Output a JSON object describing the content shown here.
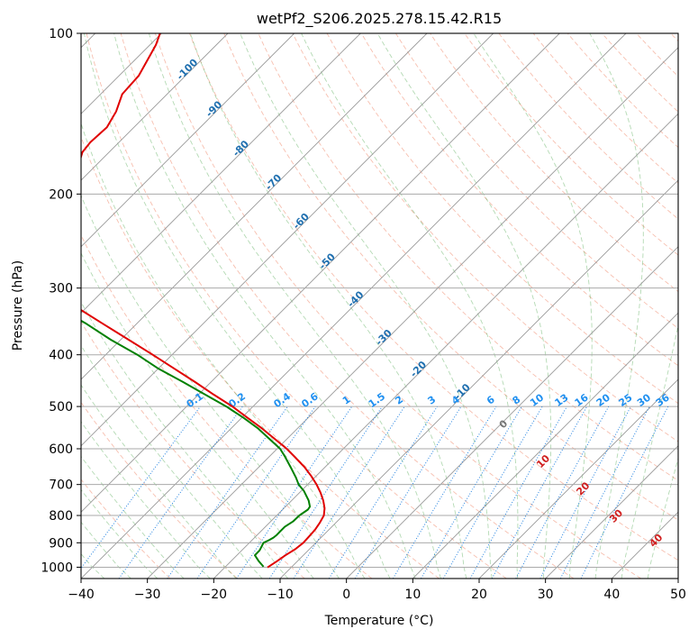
{
  "chart_data": {
    "type": "line",
    "subtype": "skew-T log-P diagram",
    "title": "wetPf2_S206.2025.278.15.42.R15",
    "xlabel": "Temperature (°C)",
    "ylabel": "Pressure (hPa)",
    "xlim": [
      -40,
      50
    ],
    "ylim": [
      1050,
      100
    ],
    "x_ticks": [
      -40,
      -30,
      -20,
      -10,
      0,
      10,
      20,
      30,
      40,
      50
    ],
    "x_tick_labels": [
      "−40",
      "−30",
      "−20",
      "−10",
      "0",
      "10",
      "20",
      "30",
      "40",
      "50"
    ],
    "y_ticks": [
      100,
      200,
      300,
      400,
      500,
      600,
      700,
      800,
      900,
      1000
    ],
    "y_tick_labels": [
      "100",
      "200",
      "300",
      "400",
      "500",
      "600",
      "700",
      "800",
      "900",
      "1000"
    ],
    "isotherm_labels": [
      {
        "text": "-100",
        "p": 118
      },
      {
        "text": "-90",
        "p": 140
      },
      {
        "text": "-80",
        "p": 166
      },
      {
        "text": "-70",
        "p": 192
      },
      {
        "text": "-60",
        "p": 227
      },
      {
        "text": "-50",
        "p": 270
      },
      {
        "text": "-40",
        "p": 318
      },
      {
        "text": "-30",
        "p": 375
      },
      {
        "text": "-20",
        "p": 430
      },
      {
        "text": "-10",
        "p": 474
      }
    ],
    "mixing_ratio_labels": [
      "0.1",
      "0.2",
      "0.4",
      "0.6",
      "1",
      "1.5",
      "2",
      "3",
      "4",
      "6",
      "8",
      "10",
      "13",
      "16",
      "20",
      "25",
      "30",
      "36"
    ],
    "moist_adiabat_labels": [
      "0",
      "10",
      "20",
      "30",
      "40"
    ],
    "series": [
      {
        "name": "Temperature",
        "color": "#e00000",
        "points": [
          [
            -11.9,
            1001
          ],
          [
            -10.5,
            975
          ],
          [
            -9.2,
            950
          ],
          [
            -7.7,
            925
          ],
          [
            -6.5,
            900
          ],
          [
            -5.6,
            875
          ],
          [
            -4.7,
            850
          ],
          [
            -4.0,
            825
          ],
          [
            -3.4,
            800
          ],
          [
            -3.3,
            775
          ],
          [
            -3.5,
            750
          ],
          [
            -3.9,
            725
          ],
          [
            -4.5,
            700
          ],
          [
            -5.3,
            675
          ],
          [
            -6.3,
            650
          ],
          [
            -7.6,
            625
          ],
          [
            -9.0,
            600
          ],
          [
            -10.8,
            575
          ],
          [
            -12.7,
            550
          ],
          [
            -14.9,
            525
          ],
          [
            -17.2,
            500
          ],
          [
            -20.0,
            475
          ],
          [
            -22.8,
            450
          ],
          [
            -25.9,
            425
          ],
          [
            -29.2,
            400
          ],
          [
            -32.8,
            375
          ],
          [
            -36.7,
            350
          ],
          [
            -40.8,
            325
          ],
          [
            -45.2,
            300
          ],
          [
            -50.1,
            275
          ],
          [
            -52.8,
            262
          ],
          [
            -53.4,
            255
          ],
          [
            -52.0,
            242
          ],
          [
            -49.0,
            225
          ],
          [
            -46.1,
            210
          ],
          [
            -44.1,
            200
          ],
          [
            -42.0,
            190
          ],
          [
            -40.5,
            180
          ],
          [
            -40.3,
            175
          ],
          [
            -39.8,
            167
          ],
          [
            -38.6,
            160
          ],
          [
            -36.1,
            150
          ],
          [
            -34.7,
            140
          ],
          [
            -33.8,
            130
          ],
          [
            -31.3,
            120
          ],
          [
            -29.6,
            110
          ],
          [
            -28.7,
            105
          ],
          [
            -28.1,
            100
          ]
        ]
      },
      {
        "name": "Dewpoint",
        "color": "#008000",
        "points": [
          [
            -12.5,
            998
          ],
          [
            -13.2,
            975
          ],
          [
            -13.8,
            950
          ],
          [
            -13.1,
            930
          ],
          [
            -12.8,
            915
          ],
          [
            -12.5,
            900
          ],
          [
            -11.7,
            890
          ],
          [
            -11.0,
            880
          ],
          [
            -10.5,
            870
          ],
          [
            -9.9,
            855
          ],
          [
            -9.3,
            840
          ],
          [
            -8.0,
            820
          ],
          [
            -7.1,
            800
          ],
          [
            -5.8,
            780
          ],
          [
            -5.5,
            770
          ],
          [
            -5.6,
            760
          ],
          [
            -5.7,
            750
          ],
          [
            -6.4,
            720
          ],
          [
            -7.2,
            700
          ],
          [
            -7.6,
            680
          ],
          [
            -8.4,
            650
          ],
          [
            -9.3,
            620
          ],
          [
            -10.0,
            600
          ],
          [
            -11.6,
            575
          ],
          [
            -13.3,
            550
          ],
          [
            -15.5,
            525
          ],
          [
            -18.1,
            500
          ],
          [
            -21.3,
            475
          ],
          [
            -24.6,
            450
          ],
          [
            -28.3,
            425
          ],
          [
            -31.5,
            400
          ],
          [
            -35.5,
            375
          ],
          [
            -39.2,
            350
          ],
          [
            -43.7,
            325
          ],
          [
            -46.1,
            300
          ],
          [
            -50.5,
            285
          ],
          [
            -54.2,
            270
          ],
          [
            -55.5,
            260
          ],
          [
            -56.6,
            253
          ],
          [
            -62.8,
            248
          ],
          [
            -70.8,
            237
          ],
          [
            -71.9,
            225
          ],
          [
            -70.9,
            215
          ],
          [
            -70.2,
            205
          ],
          [
            -72.5,
            196
          ],
          [
            -78.2,
            190
          ],
          [
            -79.5,
            185
          ],
          [
            -74.9,
            177
          ],
          [
            -71.6,
            170
          ],
          [
            -70.5,
            162
          ],
          [
            -70.6,
            150
          ],
          [
            -67.0,
            140
          ],
          [
            -63.5,
            130
          ],
          [
            -60.3,
            121
          ],
          [
            -59.0,
            115
          ],
          [
            -58.2,
            110
          ],
          [
            -57.8,
            105
          ],
          [
            -57.3,
            100
          ]
        ]
      }
    ]
  }
}
